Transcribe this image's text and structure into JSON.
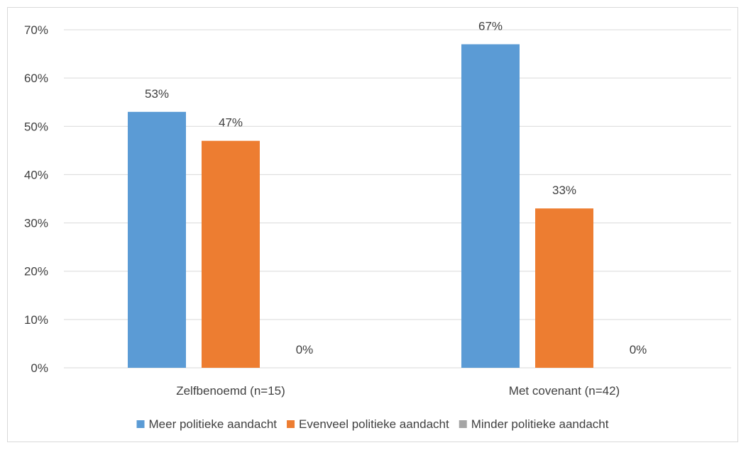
{
  "chart_data": {
    "type": "bar",
    "categories": [
      "Zelfbenoemd (n=15)",
      "Met covenant (n=42)"
    ],
    "series": [
      {
        "name": "Meer politieke aandacht",
        "values": [
          53,
          67
        ],
        "labels": [
          "53%",
          "67%"
        ],
        "color": "#5b9bd5"
      },
      {
        "name": "Evenveel politieke aandacht",
        "values": [
          47,
          33
        ],
        "labels": [
          "47%",
          "33%"
        ],
        "color": "#ed7d31"
      },
      {
        "name": "Minder politieke aandacht",
        "values": [
          0,
          0
        ],
        "labels": [
          "0%",
          "0%"
        ],
        "color": "#a5a5a5"
      }
    ],
    "ylim": [
      0,
      70
    ],
    "yticks": [
      "0%",
      "10%",
      "20%",
      "30%",
      "40%",
      "50%",
      "60%",
      "70%"
    ],
    "grid": true,
    "legend_position": "bottom",
    "title": "",
    "xlabel": "",
    "ylabel": ""
  }
}
